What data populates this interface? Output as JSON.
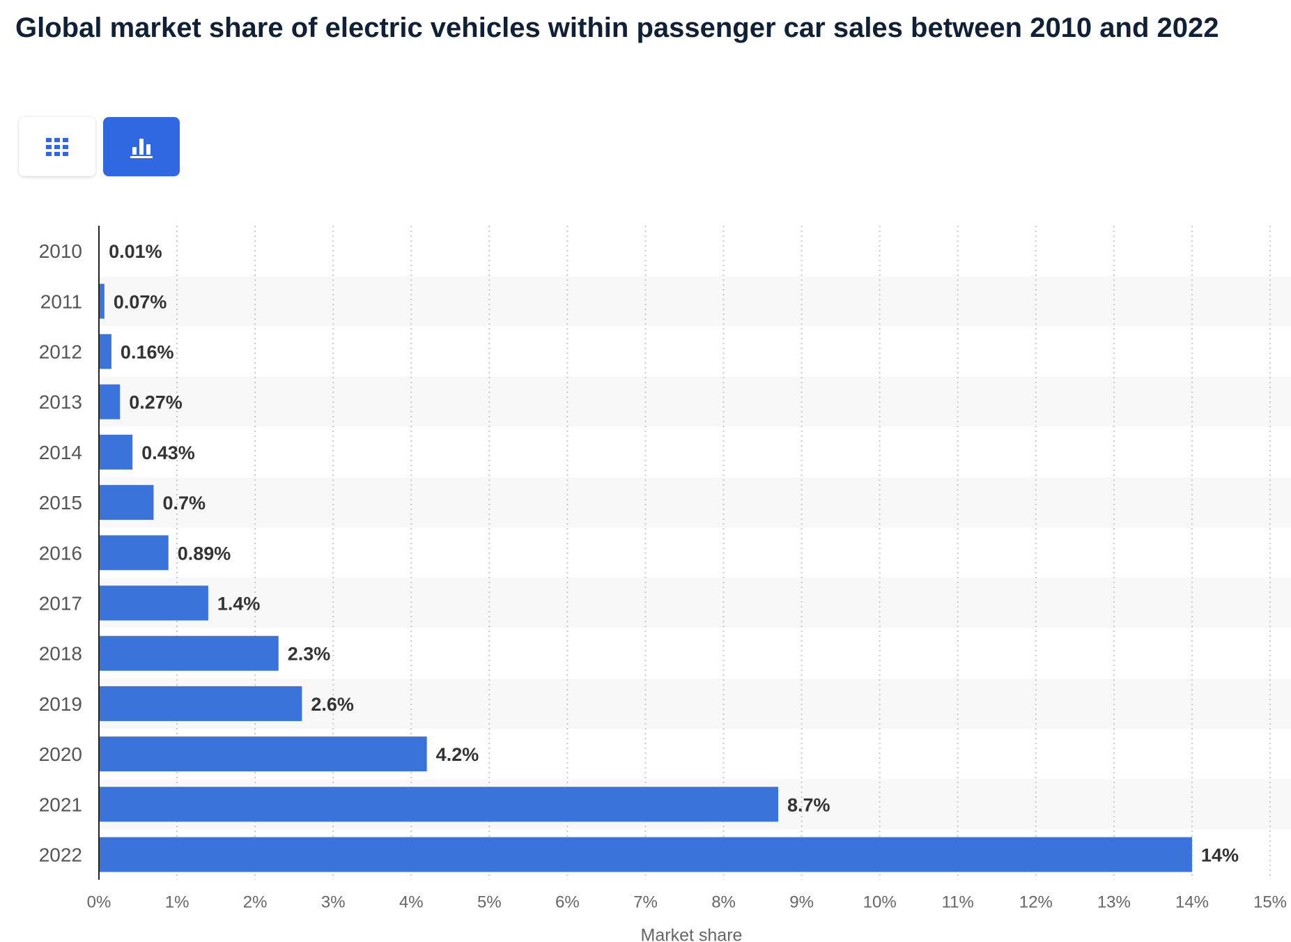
{
  "page": {
    "title": "Global market share of electric vehicles within passenger car sales between 2010 and 2022"
  },
  "view_toggle": {
    "table_icon": "grid-icon",
    "chart_icon": "bar-chart-icon",
    "active": "chart",
    "active_color": "#2f68e0"
  },
  "chart_data": {
    "type": "bar",
    "orientation": "horizontal",
    "categories": [
      "2010",
      "2011",
      "2012",
      "2013",
      "2014",
      "2015",
      "2016",
      "2017",
      "2018",
      "2019",
      "2020",
      "2021",
      "2022"
    ],
    "values": [
      0.01,
      0.07,
      0.16,
      0.27,
      0.43,
      0.7,
      0.89,
      1.4,
      2.3,
      2.6,
      4.2,
      8.7,
      14
    ],
    "data_labels": [
      "0.01%",
      "0.07%",
      "0.16%",
      "0.27%",
      "0.43%",
      "0.7%",
      "0.89%",
      "1.4%",
      "2.3%",
      "2.6%",
      "4.2%",
      "8.7%",
      "14%"
    ],
    "x_ticks": [
      "0%",
      "1%",
      "2%",
      "3%",
      "4%",
      "5%",
      "6%",
      "7%",
      "8%",
      "9%",
      "10%",
      "11%",
      "12%",
      "13%",
      "14%",
      "15%"
    ],
    "xlim": [
      0,
      15
    ],
    "xlabel": "Market share",
    "ylabel": "",
    "grid": "vertical-dotted",
    "bar_color": "#3a74db",
    "alt_row_color": "#f8f8f8"
  }
}
